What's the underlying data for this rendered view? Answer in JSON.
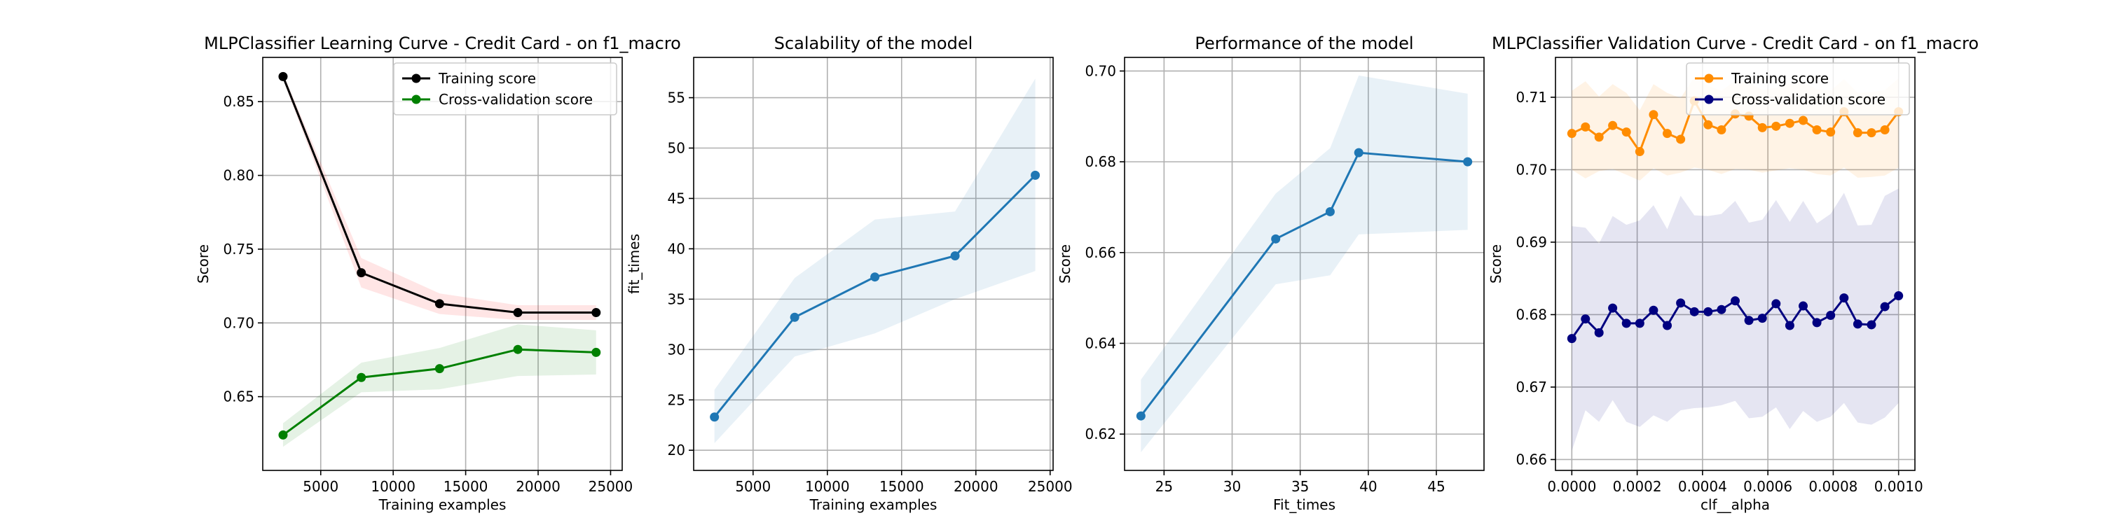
{
  "chart_data": [
    {
      "type": "line",
      "title": "MLPClassifier Learning Curve - Credit Card - on f1_macro",
      "xlabel": "Training examples",
      "ylabel": "Score",
      "xlim": [
        1000,
        25800
      ],
      "ylim": [
        0.6,
        0.88
      ],
      "xticks": [
        5000,
        10000,
        15000,
        20000,
        25000
      ],
      "xtick_labels": [
        "5000",
        "10000",
        "15000",
        "20000",
        "25000"
      ],
      "yticks": [
        0.65,
        0.7,
        0.75,
        0.8,
        0.85
      ],
      "ytick_labels": [
        "0.65",
        "0.70",
        "0.75",
        "0.80",
        "0.85"
      ],
      "grid": true,
      "legend": "top-right",
      "series": [
        {
          "name": "Training score",
          "color": "#000000",
          "band_color": "#ff0000",
          "x": [
            2400,
            7800,
            13200,
            18600,
            24000
          ],
          "y": [
            0.867,
            0.734,
            0.713,
            0.707,
            0.707
          ],
          "lower": [
            0.865,
            0.724,
            0.706,
            0.702,
            0.702
          ],
          "upper": [
            0.869,
            0.744,
            0.72,
            0.712,
            0.712
          ]
        },
        {
          "name": "Cross-validation score",
          "color": "#008000",
          "band_color": "#008000",
          "x": [
            2400,
            7800,
            13200,
            18600,
            24000
          ],
          "y": [
            0.624,
            0.663,
            0.669,
            0.682,
            0.68
          ],
          "lower": [
            0.616,
            0.653,
            0.655,
            0.664,
            0.665
          ],
          "upper": [
            0.632,
            0.673,
            0.683,
            0.699,
            0.695
          ]
        }
      ]
    },
    {
      "type": "line",
      "title": "Scalability of the model",
      "xlabel": "Training examples",
      "ylabel": "fit_times",
      "xlim": [
        1000,
        25200
      ],
      "ylim": [
        18,
        59
      ],
      "xticks": [
        5000,
        10000,
        15000,
        20000,
        25000
      ],
      "xtick_labels": [
        "5000",
        "10000",
        "15000",
        "20000",
        "25000"
      ],
      "yticks": [
        20,
        25,
        30,
        35,
        40,
        45,
        50,
        55
      ],
      "ytick_labels": [
        "20",
        "25",
        "30",
        "35",
        "40",
        "45",
        "50",
        "55"
      ],
      "grid": true,
      "series": [
        {
          "color": "#1f77b4",
          "band_color": "#1f77b4",
          "x": [
            2400,
            7800,
            13200,
            18600,
            24000
          ],
          "y": [
            23.3,
            33.2,
            37.2,
            39.3,
            47.3
          ],
          "lower": [
            20.7,
            29.3,
            31.6,
            35.0,
            37.8
          ],
          "upper": [
            26.0,
            37.1,
            42.9,
            43.7,
            56.9
          ]
        }
      ]
    },
    {
      "type": "line",
      "title": "Performance of the model",
      "xlabel": "Fit_times",
      "ylabel": "Score",
      "xlim": [
        22.1,
        48.5
      ],
      "ylim": [
        0.612,
        0.703
      ],
      "xticks": [
        25,
        30,
        35,
        40,
        45
      ],
      "xtick_labels": [
        "25",
        "30",
        "35",
        "40",
        "45"
      ],
      "yticks": [
        0.62,
        0.64,
        0.66,
        0.68,
        0.7
      ],
      "ytick_labels": [
        "0.62",
        "0.64",
        "0.66",
        "0.68",
        "0.70"
      ],
      "grid": true,
      "series": [
        {
          "color": "#1f77b4",
          "band_color": "#1f77b4",
          "x": [
            23.3,
            33.2,
            37.2,
            39.3,
            47.3
          ],
          "y": [
            0.624,
            0.663,
            0.669,
            0.682,
            0.68
          ],
          "lower": [
            0.616,
            0.653,
            0.655,
            0.664,
            0.665
          ],
          "upper": [
            0.632,
            0.673,
            0.683,
            0.699,
            0.695
          ]
        }
      ]
    },
    {
      "type": "line",
      "title": "MLPClassifier Validation Curve - Credit Card - on f1_macro",
      "xlabel": "clf__alpha",
      "ylabel": "Score",
      "xlim": [
        -5e-05,
        0.00105
      ],
      "ylim": [
        0.6585,
        0.7155
      ],
      "xticks": [
        0.0,
        0.0002,
        0.0004,
        0.0006,
        0.0008,
        0.001
      ],
      "xtick_labels": [
        "0.0000",
        "0.0002",
        "0.0004",
        "0.0006",
        "0.0008",
        "0.0010"
      ],
      "yticks": [
        0.66,
        0.67,
        0.68,
        0.69,
        0.7,
        0.71
      ],
      "ytick_labels": [
        "0.66",
        "0.67",
        "0.68",
        "0.69",
        "0.70",
        "0.71"
      ],
      "grid": true,
      "legend": "top-right",
      "series": [
        {
          "name": "Training score",
          "color": "#ff8c00",
          "band_color": "#ff8c00",
          "x": [
            0.0,
            4.17e-05,
            8.33e-05,
            0.000125,
            0.000167,
            0.000208,
            0.00025,
            0.000292,
            0.000333,
            0.000375,
            0.000417,
            0.000458,
            0.0005,
            0.000542,
            0.000583,
            0.000625,
            0.000667,
            0.000708,
            0.00075,
            0.000792,
            0.000833,
            0.000875,
            0.000917,
            0.000958,
            0.001
          ],
          "y": [
            0.705,
            0.7059,
            0.7045,
            0.7061,
            0.7052,
            0.7025,
            0.7076,
            0.705,
            0.7042,
            0.7095,
            0.7062,
            0.7055,
            0.7077,
            0.7074,
            0.7058,
            0.706,
            0.7064,
            0.7068,
            0.7055,
            0.7052,
            0.708,
            0.7051,
            0.7051,
            0.7055,
            0.708
          ],
          "lower": [
            0.7,
            0.6988,
            0.6998,
            0.7001,
            0.6993,
            0.6985,
            0.7002,
            0.6992,
            0.6996,
            0.7003,
            0.7,
            0.6994,
            0.7001,
            0.7,
            0.6996,
            0.6999,
            0.7002,
            0.7,
            0.6994,
            0.6992,
            0.7003,
            0.6989,
            0.699,
            0.6992,
            0.7003
          ],
          "upper": [
            0.7109,
            0.7122,
            0.7101,
            0.7118,
            0.7106,
            0.7082,
            0.7118,
            0.7106,
            0.7099,
            0.7128,
            0.7116,
            0.7109,
            0.7123,
            0.712,
            0.711,
            0.7113,
            0.7119,
            0.7121,
            0.7111,
            0.7109,
            0.7125,
            0.7106,
            0.7107,
            0.711,
            0.7126
          ]
        },
        {
          "name": "Cross-validation score",
          "color": "#000080",
          "band_color": "#000080",
          "x": [
            0.0,
            4.17e-05,
            8.33e-05,
            0.000125,
            0.000167,
            0.000208,
            0.00025,
            0.000292,
            0.000333,
            0.000375,
            0.000417,
            0.000458,
            0.0005,
            0.000542,
            0.000583,
            0.000625,
            0.000667,
            0.000708,
            0.00075,
            0.000792,
            0.000833,
            0.000875,
            0.000917,
            0.000958,
            0.001
          ],
          "y": [
            0.6767,
            0.6794,
            0.6775,
            0.6809,
            0.6788,
            0.6788,
            0.6806,
            0.6785,
            0.6816,
            0.6804,
            0.6804,
            0.6807,
            0.6819,
            0.6792,
            0.6795,
            0.6815,
            0.6785,
            0.6812,
            0.6789,
            0.6799,
            0.6823,
            0.6787,
            0.6786,
            0.6811,
            0.6826
          ],
          "lower": [
            0.6612,
            0.6668,
            0.6652,
            0.6682,
            0.6652,
            0.6645,
            0.6661,
            0.6652,
            0.6668,
            0.6671,
            0.6672,
            0.6675,
            0.6681,
            0.6657,
            0.6659,
            0.6672,
            0.6642,
            0.6667,
            0.6652,
            0.6659,
            0.6678,
            0.6651,
            0.6648,
            0.6658,
            0.6678
          ],
          "upper": [
            0.6922,
            0.692,
            0.6898,
            0.6936,
            0.6924,
            0.693,
            0.6951,
            0.6918,
            0.6964,
            0.6937,
            0.6936,
            0.6939,
            0.6957,
            0.6927,
            0.6931,
            0.6958,
            0.6928,
            0.6957,
            0.6926,
            0.6939,
            0.6968,
            0.6923,
            0.6924,
            0.6964,
            0.6974
          ]
        }
      ]
    }
  ]
}
